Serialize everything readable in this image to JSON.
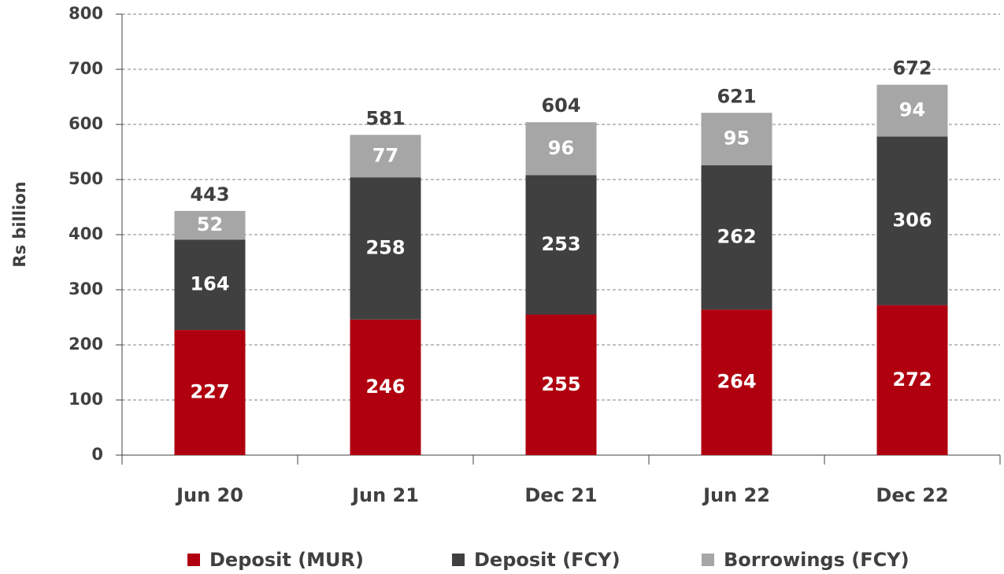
{
  "chart_data": {
    "type": "stacked_bar",
    "y_label": "Rs billion",
    "categories": [
      "Jun 20",
      "Jun 21",
      "Dec 21",
      "Jun 22",
      "Dec 22"
    ],
    "series": [
      {
        "name": "Deposit (MUR)",
        "color": "#b0000f",
        "values": [
          227,
          246,
          255,
          264,
          272
        ]
      },
      {
        "name": "Deposit (FCY)",
        "color": "#404040",
        "values": [
          164,
          258,
          253,
          262,
          306
        ]
      },
      {
        "name": "Borrowings (FCY)",
        "color": "#a6a6a6",
        "values": [
          52,
          77,
          96,
          95,
          94
        ]
      }
    ],
    "totals": [
      443,
      581,
      604,
      621,
      672
    ],
    "ylim": [
      0,
      800
    ],
    "yticks": [
      0,
      100,
      200,
      300,
      400,
      500,
      600,
      700,
      800
    ],
    "grid": true,
    "legend": "bottom"
  }
}
